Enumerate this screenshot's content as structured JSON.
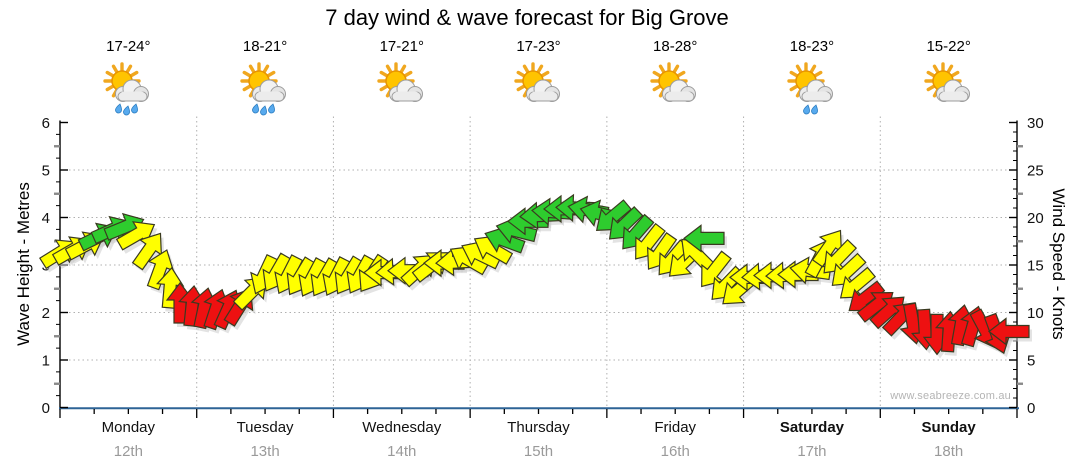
{
  "header": {
    "title": "7 day wind & wave forecast for Big Grove"
  },
  "watermark": "www.seabreeze.com.au",
  "chart_data": {
    "type": "wind_arrow_timeseries",
    "title": "7 day wind & wave forecast for Big Grove",
    "left_axis": {
      "label": "Wave Height - Metres",
      "min": 0,
      "max": 6,
      "ticks": [
        0,
        1,
        2,
        3,
        4,
        5,
        6
      ]
    },
    "right_axis": {
      "label": "Wind Speed - Knots",
      "min": 0,
      "max": 30,
      "ticks": [
        0,
        5,
        10,
        15,
        20,
        25,
        30
      ]
    },
    "grid": {
      "horizontal_at_metres": [
        1,
        2,
        3,
        4,
        5
      ],
      "vertical_at_day_boundaries": true
    },
    "colors": {
      "y": "#ffff00",
      "g": "#2ecc2e",
      "r": "#ee1111",
      "outline": "#3a3a20",
      "shadow": "#cccccc",
      "axis": "#000000",
      "baseline": "#2e6496",
      "gridline": "#b0b0b0",
      "day_color": "#111111",
      "date_color": "#9a9a9a"
    },
    "days": [
      {
        "name": "Monday",
        "date": "12th",
        "temp": "17-24°",
        "icon": "sun-cloud-rain",
        "bold": false
      },
      {
        "name": "Tuesday",
        "date": "13th",
        "temp": "18-21°",
        "icon": "sun-cloud-rain",
        "bold": false
      },
      {
        "name": "Wednesday",
        "date": "14th",
        "temp": "17-21°",
        "icon": "sun-cloud",
        "bold": false
      },
      {
        "name": "Thursday",
        "date": "15th",
        "temp": "17-23°",
        "icon": "sun-cloud",
        "bold": false
      },
      {
        "name": "Friday",
        "date": "16th",
        "temp": "18-28°",
        "icon": "sun-cloud",
        "bold": false
      },
      {
        "name": "Saturday",
        "date": "17th",
        "temp": "18-23°",
        "icon": "sun-cloud-rain-light",
        "bold": true
      },
      {
        "name": "Sunday",
        "date": "18th",
        "temp": "15-22°",
        "icon": "sun-cloud",
        "bold": true
      }
    ],
    "arrows_note": "each arrow = [x_px, wind_knots, direction_deg (0=east, clockwise), color y|g|r]",
    "arrows": [
      [
        60,
        16.3,
        -32,
        "y"
      ],
      [
        73,
        16.6,
        -30,
        "y"
      ],
      [
        86,
        17.1,
        -28,
        "y"
      ],
      [
        99,
        18.0,
        -26,
        "g"
      ],
      [
        112,
        18.7,
        -24,
        "g"
      ],
      [
        125,
        19.0,
        -22,
        "g"
      ],
      [
        137,
        18.2,
        -30,
        "y"
      ],
      [
        149,
        16.6,
        -55,
        "y"
      ],
      [
        160,
        14.6,
        -70,
        "y"
      ],
      [
        170,
        12.6,
        -85,
        "y"
      ],
      [
        180,
        11.0,
        -90,
        "r"
      ],
      [
        192,
        10.7,
        -84,
        "r"
      ],
      [
        204,
        10.5,
        -78,
        "r"
      ],
      [
        216,
        10.4,
        -72,
        "r"
      ],
      [
        228,
        10.4,
        -66,
        "r"
      ],
      [
        240,
        10.7,
        -58,
        "r"
      ],
      [
        252,
        12.2,
        -45,
        "y"
      ],
      [
        264,
        13.9,
        115,
        "y"
      ],
      [
        276,
        14.1,
        120,
        "y"
      ],
      [
        288,
        13.9,
        117,
        "y"
      ],
      [
        300,
        13.7,
        121,
        "y"
      ],
      [
        312,
        13.6,
        118,
        "y"
      ],
      [
        324,
        13.6,
        120,
        "y"
      ],
      [
        336,
        13.7,
        117,
        "y"
      ],
      [
        348,
        13.8,
        121,
        "y"
      ],
      [
        360,
        13.9,
        119,
        "y"
      ],
      [
        372,
        14.0,
        123,
        "y"
      ],
      [
        384,
        14.2,
        180,
        "y"
      ],
      [
        396,
        14.3,
        177,
        "y"
      ],
      [
        408,
        14.4,
        180,
        "y"
      ],
      [
        420,
        14.6,
        -42,
        "y"
      ],
      [
        432,
        15.0,
        -38,
        "y"
      ],
      [
        444,
        15.2,
        180,
        "y"
      ],
      [
        456,
        15.3,
        177,
        "y"
      ],
      [
        468,
        15.6,
        -150,
        "y"
      ],
      [
        480,
        16.1,
        -154,
        "y"
      ],
      [
        492,
        16.7,
        -150,
        "y"
      ],
      [
        504,
        17.6,
        -160,
        "g"
      ],
      [
        516,
        18.6,
        -166,
        "g"
      ],
      [
        528,
        19.6,
        180,
        "g"
      ],
      [
        540,
        20.2,
        177,
        "g"
      ],
      [
        552,
        20.6,
        -176,
        "g"
      ],
      [
        564,
        20.9,
        180,
        "g"
      ],
      [
        576,
        21.0,
        -178,
        "g"
      ],
      [
        588,
        20.8,
        -170,
        "g"
      ],
      [
        600,
        20.4,
        -166,
        "g"
      ],
      [
        612,
        20.0,
        140,
        "g"
      ],
      [
        624,
        19.2,
        136,
        "g"
      ],
      [
        636,
        18.3,
        131,
        "g"
      ],
      [
        648,
        17.3,
        128,
        "y"
      ],
      [
        660,
        16.3,
        125,
        "y"
      ],
      [
        672,
        15.6,
        130,
        "y"
      ],
      [
        684,
        15.3,
        136,
        "y"
      ],
      [
        696,
        16.2,
        -135,
        "y"
      ],
      [
        704,
        17.8,
        180,
        "g"
      ],
      [
        714,
        14.4,
        128,
        "y"
      ],
      [
        726,
        12.9,
        134,
        "y"
      ],
      [
        738,
        12.3,
        139,
        "y"
      ],
      [
        750,
        13.7,
        180,
        "y"
      ],
      [
        762,
        13.8,
        177,
        "y"
      ],
      [
        774,
        13.9,
        180,
        "y"
      ],
      [
        786,
        13.9,
        178,
        "y"
      ],
      [
        798,
        14.0,
        180,
        "y"
      ],
      [
        810,
        14.4,
        -172,
        "y"
      ],
      [
        820,
        15.8,
        -62,
        "y"
      ],
      [
        829,
        16.9,
        -55,
        "y"
      ],
      [
        838,
        15.7,
        134,
        "y"
      ],
      [
        847,
        14.3,
        137,
        "y"
      ],
      [
        856,
        12.9,
        140,
        "y"
      ],
      [
        865,
        11.5,
        142,
        "r"
      ],
      [
        877,
        10.8,
        -38,
        "r"
      ],
      [
        889,
        10.2,
        -42,
        "r"
      ],
      [
        901,
        9.5,
        -46,
        "r"
      ],
      [
        913,
        8.8,
        80,
        "r"
      ],
      [
        925,
        8.2,
        86,
        "r"
      ],
      [
        937,
        7.7,
        90,
        "r"
      ],
      [
        949,
        8.0,
        -86,
        "r"
      ],
      [
        961,
        8.7,
        -80,
        "r"
      ],
      [
        973,
        8.6,
        -74,
        "r"
      ],
      [
        985,
        8.2,
        62,
        "r"
      ],
      [
        997,
        7.7,
        70,
        "r"
      ],
      [
        1009,
        8.0,
        180,
        "r"
      ]
    ]
  }
}
